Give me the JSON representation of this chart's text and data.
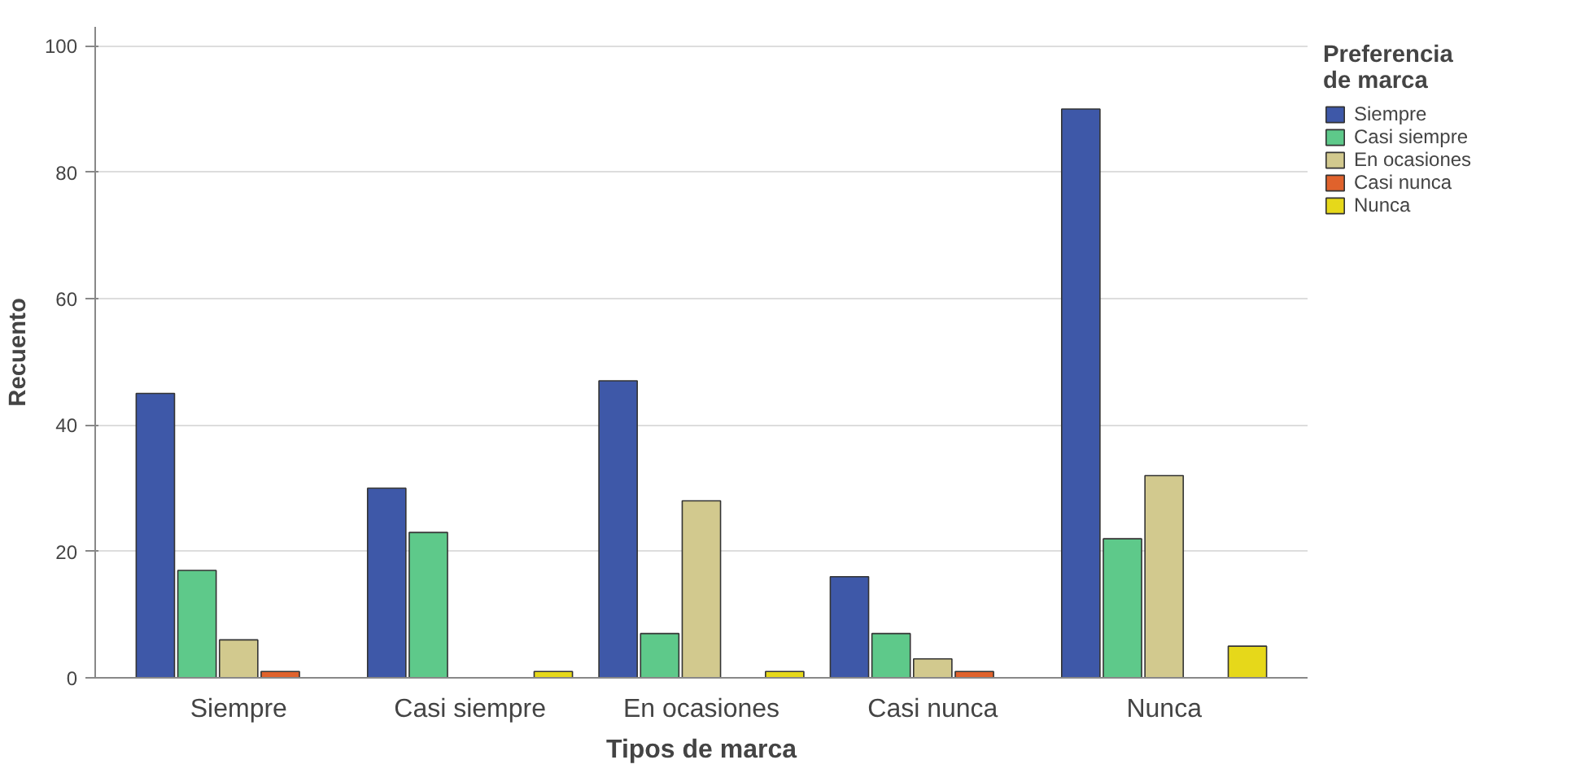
{
  "chart_data": {
    "type": "bar",
    "xlabel": "Tipos de marca",
    "ylabel": "Recuento",
    "legend_title": "Preferencia\nde marca",
    "categories": [
      "Siempre",
      "Casi siempre",
      "En ocasiones",
      "Casi nunca",
      "Nunca"
    ],
    "series": [
      {
        "name": "Siempre",
        "color": "#3e58a8",
        "values": [
          45,
          30,
          47,
          16,
          90
        ]
      },
      {
        "name": "Casi siempre",
        "color": "#5ec98a",
        "values": [
          17,
          23,
          7,
          7,
          22
        ]
      },
      {
        "name": "En ocasiones",
        "color": "#d2c98e",
        "values": [
          6,
          null,
          28,
          3,
          32
        ]
      },
      {
        "name": "Casi nunca",
        "color": "#e0622c",
        "values": [
          1,
          null,
          null,
          1,
          null
        ]
      },
      {
        "name": "Nunca",
        "color": "#e6d81a",
        "values": [
          null,
          1,
          1,
          null,
          5
        ]
      }
    ],
    "ylim": [
      0,
      103
    ],
    "yticks": [
      0,
      20,
      40,
      60,
      80,
      100
    ],
    "grid": "y",
    "legend": "top right"
  }
}
